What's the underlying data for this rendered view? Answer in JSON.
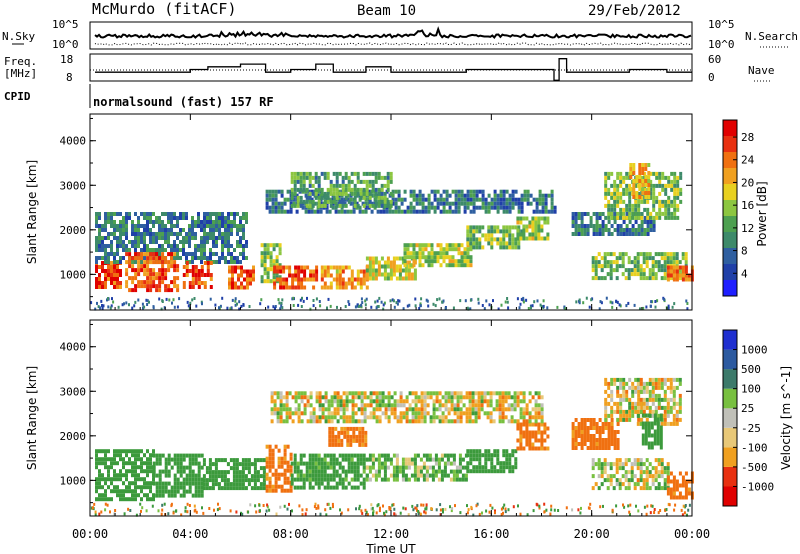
{
  "header": {
    "station": "McMurdo (fitACF)",
    "beam": "Beam 10",
    "date": "29/Feb/2012"
  },
  "summary": {
    "nsky_label": "N.Sky",
    "nsky_ticks": [
      "10^5",
      "10^0"
    ],
    "nsearch_label": "N.Search",
    "nsearch_ticks": [
      "10^5",
      "10^0"
    ],
    "freq_label_line1": "Freq.",
    "freq_label_line2": "[MHz]",
    "freq_ticks": [
      "18",
      "8"
    ],
    "nave_label": "Nave",
    "nave_ticks": [
      "60",
      "0"
    ],
    "cpid_label": "CPID",
    "cpid_value": "normalsound (fast) 157 RF"
  },
  "colors": {
    "power": [
      "#1f1fff",
      "#2040a8",
      "#2f5fa0",
      "#3d8a6a",
      "#4da050",
      "#8cc640",
      "#e8d020",
      "#f0a020",
      "#f07010",
      "#e83010",
      "#e00000"
    ],
    "velocity": [
      "#e00000",
      "#e83010",
      "#f07010",
      "#f0a020",
      "#e8c878",
      "#c0c0b8",
      "#78c040",
      "#3c9a3c",
      "#3c7a6a",
      "#2c5aa0",
      "#1f2fd0"
    ]
  },
  "chart_data": [
    {
      "type": "heatmap",
      "name": "power",
      "xlabel": "",
      "ylabel": "Slant Range [km]",
      "xlim": [
        0,
        24
      ],
      "ylim": [
        200,
        4600
      ],
      "yticks": [
        "1000",
        "2000",
        "3000",
        "4000"
      ],
      "colorbar_label": "Power [dB]",
      "colorbar_ticks": [
        "4",
        "8",
        "12",
        "16",
        "20",
        "24",
        "28"
      ],
      "colorbar_range": [
        0,
        31
      ],
      "bands": [
        {
          "x": [
            0.2,
            1.2
          ],
          "y": [
            700,
            1300
          ],
          "value": 28
        },
        {
          "x": [
            0.2,
            6.2
          ],
          "y": [
            1300,
            2400
          ],
          "value": 8
        },
        {
          "x": [
            1.4,
            3.5
          ],
          "y": [
            650,
            1500
          ],
          "value": 26
        },
        {
          "x": [
            3.7,
            4.8
          ],
          "y": [
            700,
            1300
          ],
          "value": 27
        },
        {
          "x": [
            5.5,
            6.5
          ],
          "y": [
            700,
            1200
          ],
          "value": 26
        },
        {
          "x": [
            6.8,
            7.6
          ],
          "y": [
            850,
            1700
          ],
          "value": 14
        },
        {
          "x": [
            7.3,
            9.0
          ],
          "y": [
            700,
            1200
          ],
          "value": 27
        },
        {
          "x": [
            9.2,
            11.0
          ],
          "y": [
            700,
            1200
          ],
          "value": 22
        },
        {
          "x": [
            11.0,
            13.0
          ],
          "y": [
            900,
            1400
          ],
          "value": 18
        },
        {
          "x": [
            12.5,
            15.2
          ],
          "y": [
            1200,
            1700
          ],
          "value": 16
        },
        {
          "x": [
            15.0,
            17.2
          ],
          "y": [
            1600,
            2100
          ],
          "value": 14
        },
        {
          "x": [
            17.0,
            18.2
          ],
          "y": [
            1800,
            2300
          ],
          "value": 16
        },
        {
          "x": [
            7.0,
            18.5
          ],
          "y": [
            2400,
            2900
          ],
          "value": 8
        },
        {
          "x": [
            8.0,
            12.0
          ],
          "y": [
            2500,
            3300
          ],
          "value": 12
        },
        {
          "x": [
            19.2,
            22.5
          ],
          "y": [
            1900,
            2400
          ],
          "value": 8
        },
        {
          "x": [
            20.5,
            23.5
          ],
          "y": [
            2300,
            3300
          ],
          "value": 14
        },
        {
          "x": [
            21.5,
            22.3
          ],
          "y": [
            2700,
            3500
          ],
          "value": 21
        },
        {
          "x": [
            20.0,
            23.8
          ],
          "y": [
            900,
            1500
          ],
          "value": 14
        },
        {
          "x": [
            23.0,
            24.0
          ],
          "y": [
            900,
            1200
          ],
          "value": 24
        }
      ]
    },
    {
      "type": "heatmap",
      "name": "velocity",
      "xlabel": "Time UT",
      "ylabel": "Slant Range [km]",
      "xlim": [
        0,
        24
      ],
      "ylim": [
        200,
        4600
      ],
      "yticks": [
        "1000",
        "2000",
        "3000",
        "4000"
      ],
      "xticks": [
        "00:00",
        "04:00",
        "08:00",
        "12:00",
        "16:00",
        "20:00",
        "00:00"
      ],
      "colorbar_label": "Velocity [m s^-1]",
      "colorbar_ticks": [
        "-1000",
        "-500",
        "-100",
        "-25",
        "25",
        "100",
        "500",
        "1000"
      ],
      "bands": [
        {
          "x": [
            0.2,
            2.5
          ],
          "y": [
            600,
            1700
          ],
          "value": 300
        },
        {
          "x": [
            2.5,
            4.5
          ],
          "y": [
            650,
            1600
          ],
          "value": 300
        },
        {
          "x": [
            4.5,
            7.0
          ],
          "y": [
            800,
            1500
          ],
          "value": 300
        },
        {
          "x": [
            7.0,
            8.0
          ],
          "y": [
            800,
            1800
          ],
          "value": -200
        },
        {
          "x": [
            8.0,
            11.0
          ],
          "y": [
            800,
            1600
          ],
          "value": 200
        },
        {
          "x": [
            11.0,
            15.0
          ],
          "y": [
            1000,
            1600
          ],
          "value": 100
        },
        {
          "x": [
            15.0,
            17.0
          ],
          "y": [
            1200,
            1700
          ],
          "value": 300
        },
        {
          "x": [
            17.0,
            18.2
          ],
          "y": [
            1700,
            2300
          ],
          "value": -200
        },
        {
          "x": [
            7.2,
            18.0
          ],
          "y": [
            2300,
            3000
          ],
          "value": 0
        },
        {
          "x": [
            9.5,
            11.0
          ],
          "y": [
            1800,
            2200
          ],
          "value": -200
        },
        {
          "x": [
            19.2,
            21.0
          ],
          "y": [
            1700,
            2400
          ],
          "value": -200
        },
        {
          "x": [
            20.5,
            22.0
          ],
          "y": [
            2400,
            3300
          ],
          "value": 0
        },
        {
          "x": [
            21.8,
            23.5
          ],
          "y": [
            2300,
            3300
          ],
          "value": 0
        },
        {
          "x": [
            22.0,
            22.8
          ],
          "y": [
            1700,
            2500
          ],
          "value": 300
        },
        {
          "x": [
            20.0,
            23.0
          ],
          "y": [
            800,
            1500
          ],
          "value": 20
        },
        {
          "x": [
            23.0,
            24.0
          ],
          "y": [
            600,
            1200
          ],
          "value": -200
        }
      ]
    }
  ],
  "summary_series": {
    "freq_steps": [
      {
        "x": 0.2,
        "y": 12
      },
      {
        "x": 4.0,
        "y": 12
      },
      {
        "x": 4.0,
        "y": 13
      },
      {
        "x": 4.7,
        "y": 13
      },
      {
        "x": 4.7,
        "y": 14
      },
      {
        "x": 6.0,
        "y": 14
      },
      {
        "x": 6.0,
        "y": 15
      },
      {
        "x": 7.0,
        "y": 15
      },
      {
        "x": 7.0,
        "y": 12
      },
      {
        "x": 8.0,
        "y": 12
      },
      {
        "x": 8.0,
        "y": 13
      },
      {
        "x": 9.0,
        "y": 13
      },
      {
        "x": 9.0,
        "y": 15
      },
      {
        "x": 9.7,
        "y": 15
      },
      {
        "x": 9.7,
        "y": 12
      },
      {
        "x": 11.0,
        "y": 12
      },
      {
        "x": 11.0,
        "y": 14
      },
      {
        "x": 12.0,
        "y": 14
      },
      {
        "x": 12.0,
        "y": 12
      },
      {
        "x": 15.0,
        "y": 12
      },
      {
        "x": 15.0,
        "y": 13
      },
      {
        "x": 18.5,
        "y": 13
      },
      {
        "x": 18.5,
        "y": 9
      },
      {
        "x": 18.7,
        "y": 9
      },
      {
        "x": 18.7,
        "y": 17
      },
      {
        "x": 19.0,
        "y": 17
      },
      {
        "x": 19.0,
        "y": 12
      },
      {
        "x": 21.5,
        "y": 12
      },
      {
        "x": 21.5,
        "y": 13
      },
      {
        "x": 23.0,
        "y": 13
      },
      {
        "x": 23.0,
        "y": 12
      },
      {
        "x": 24.0,
        "y": 12
      }
    ]
  }
}
